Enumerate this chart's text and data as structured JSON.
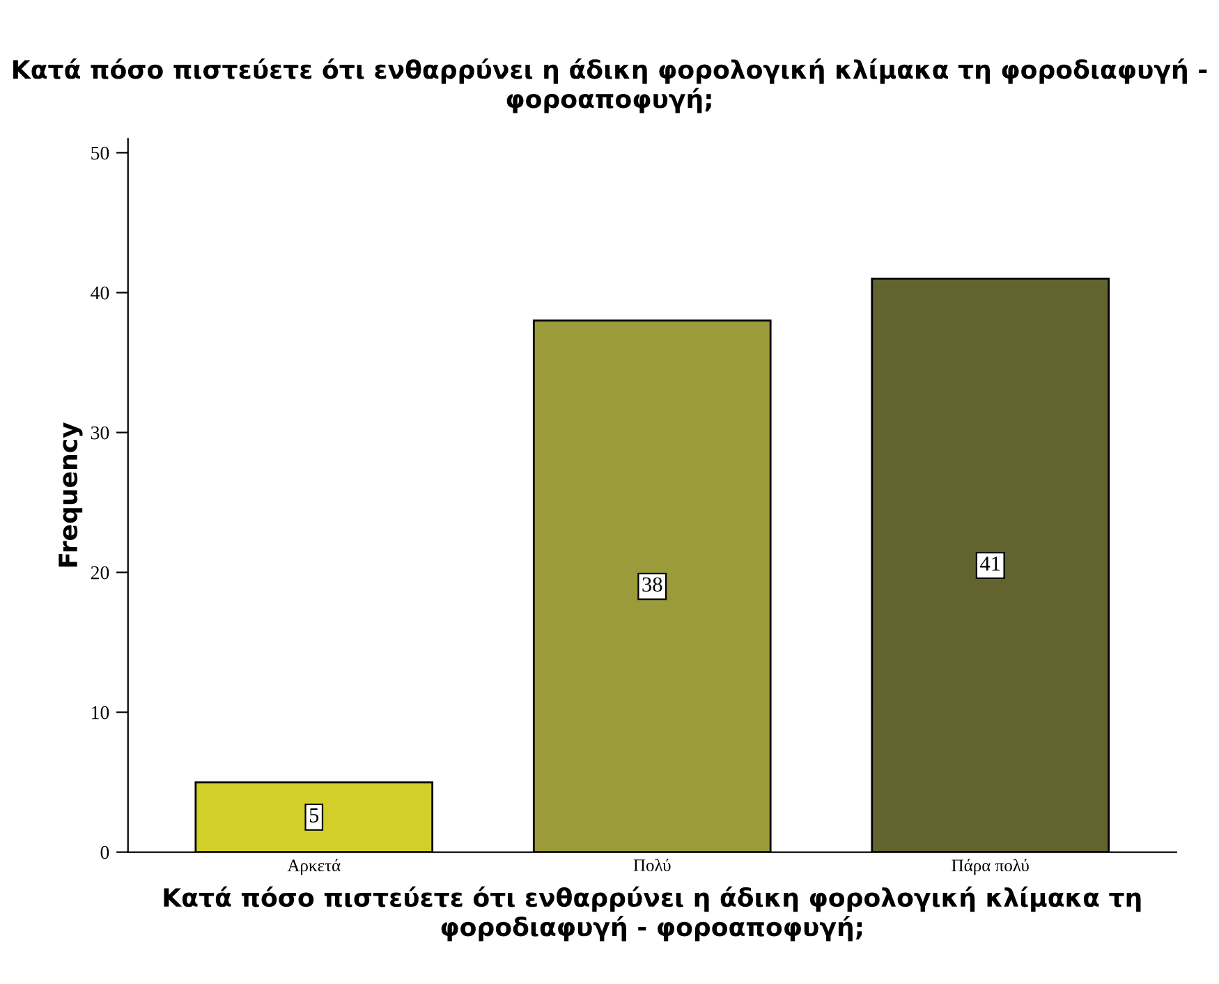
{
  "chart_data": {
    "type": "bar",
    "title": "Κατά πόσο πιστεύετε ότι ενθαρρύνει η άδικη φορολογική κλίμακα τη φοροδιαφυγή - φοροαποφυγή;",
    "xlabel": "Κατά πόσο πιστεύετε ότι ενθαρρύνει η άδικη φορολογική κλίμακα τη φοροδιαφυγή - φοροαποφυγή;",
    "ylabel": "Frequency",
    "categories": [
      "Αρκετά",
      "Πολύ",
      "Πάρα πολύ"
    ],
    "values": [
      5,
      38,
      41
    ],
    "colors": [
      "#d2cf2a",
      "#9b9b3c",
      "#63632f"
    ],
    "ylim": [
      0,
      51
    ],
    "yticks": [
      0,
      10,
      20,
      30,
      40,
      50
    ],
    "grid": false,
    "data_labels": true
  }
}
